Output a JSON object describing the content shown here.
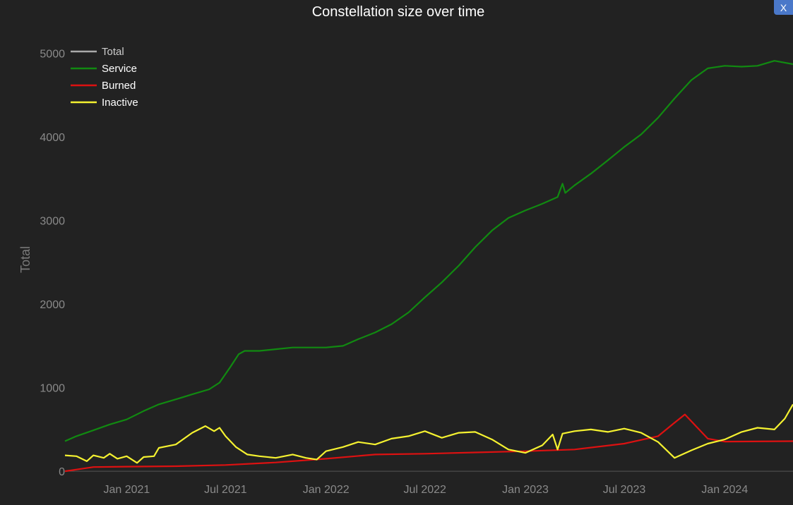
{
  "close_label": "X",
  "chart_data": {
    "type": "line",
    "title": "Constellation size over time",
    "ylabel": "Total",
    "xlabel": "",
    "x_range": [
      "2020-09-10",
      "2024-05-05"
    ],
    "ylim": [
      -100,
      5300
    ],
    "yticks": [
      0,
      1000,
      2000,
      3000,
      4000,
      5000
    ],
    "xticks": [
      {
        "date": "2021-01-01",
        "label": "Jan 2021"
      },
      {
        "date": "2021-07-01",
        "label": "Jul 2021"
      },
      {
        "date": "2022-01-01",
        "label": "Jan 2022"
      },
      {
        "date": "2022-07-01",
        "label": "Jul 2022"
      },
      {
        "date": "2023-01-01",
        "label": "Jan 2023"
      },
      {
        "date": "2023-07-01",
        "label": "Jul 2023"
      },
      {
        "date": "2024-01-01",
        "label": "Jan 2024"
      }
    ],
    "grid": false,
    "legend_position": "top-left",
    "series": [
      {
        "name": "Total",
        "color": "#aaaaaa",
        "x": [],
        "y": []
      },
      {
        "name": "Service",
        "color": "#118a11",
        "x": [
          "2020-09-10",
          "2020-10-01",
          "2020-11-01",
          "2020-12-01",
          "2021-01-01",
          "2021-02-01",
          "2021-03-01",
          "2021-04-01",
          "2021-05-01",
          "2021-06-01",
          "2021-06-20",
          "2021-07-10",
          "2021-07-25",
          "2021-08-05",
          "2021-09-01",
          "2021-10-01",
          "2021-11-01",
          "2021-12-01",
          "2022-01-01",
          "2022-01-15",
          "2022-02-01",
          "2022-03-01",
          "2022-04-01",
          "2022-05-01",
          "2022-06-01",
          "2022-07-01",
          "2022-08-01",
          "2022-09-01",
          "2022-10-01",
          "2022-11-01",
          "2022-12-01",
          "2023-01-01",
          "2023-02-01",
          "2023-03-01",
          "2023-03-10",
          "2023-03-15",
          "2023-04-01",
          "2023-05-01",
          "2023-06-01",
          "2023-07-01",
          "2023-08-01",
          "2023-09-01",
          "2023-10-01",
          "2023-11-01",
          "2023-12-01",
          "2024-01-01",
          "2024-02-01",
          "2024-03-01",
          "2024-04-01",
          "2024-05-05"
        ],
        "y": [
          360,
          420,
          490,
          560,
          620,
          720,
          800,
          860,
          920,
          980,
          1060,
          1250,
          1400,
          1440,
          1440,
          1460,
          1480,
          1480,
          1480,
          1490,
          1500,
          1580,
          1660,
          1760,
          1900,
          2080,
          2260,
          2460,
          2680,
          2880,
          3030,
          3120,
          3200,
          3280,
          3440,
          3330,
          3420,
          3560,
          3720,
          3880,
          4030,
          4230,
          4460,
          4680,
          4820,
          4850,
          4840,
          4850,
          4910,
          4870
        ]
      },
      {
        "name": "Burned",
        "color": "#dd1111",
        "x": [
          "2020-09-10",
          "2020-11-01",
          "2021-01-01",
          "2021-04-01",
          "2021-07-01",
          "2021-10-01",
          "2022-01-01",
          "2022-04-01",
          "2022-07-01",
          "2022-10-01",
          "2023-01-01",
          "2023-04-01",
          "2023-07-01",
          "2023-09-01",
          "2023-10-01",
          "2023-10-20",
          "2023-12-01",
          "2024-01-01",
          "2024-05-05"
        ],
        "y": [
          0,
          50,
          55,
          60,
          75,
          105,
          150,
          200,
          210,
          225,
          240,
          260,
          330,
          420,
          580,
          680,
          390,
          355,
          360
        ]
      },
      {
        "name": "Inactive",
        "color": "#f5f230",
        "x": [
          "2020-09-10",
          "2020-10-01",
          "2020-10-20",
          "2020-11-01",
          "2020-11-20",
          "2020-12-01",
          "2020-12-15",
          "2021-01-01",
          "2021-01-20",
          "2021-02-01",
          "2021-02-20",
          "2021-03-01",
          "2021-04-01",
          "2021-05-01",
          "2021-05-25",
          "2021-06-10",
          "2021-06-20",
          "2021-07-01",
          "2021-07-20",
          "2021-08-10",
          "2021-09-01",
          "2021-10-01",
          "2021-11-01",
          "2021-11-25",
          "2021-12-15",
          "2022-01-01",
          "2022-02-01",
          "2022-03-01",
          "2022-04-01",
          "2022-05-01",
          "2022-06-01",
          "2022-07-01",
          "2022-08-01",
          "2022-09-01",
          "2022-10-01",
          "2022-11-01",
          "2022-12-01",
          "2023-01-01",
          "2023-02-01",
          "2023-02-20",
          "2023-03-01",
          "2023-03-10",
          "2023-04-01",
          "2023-05-01",
          "2023-06-01",
          "2023-07-01",
          "2023-08-01",
          "2023-09-01",
          "2023-10-01",
          "2023-11-01",
          "2023-12-01",
          "2024-01-01",
          "2024-02-01",
          "2024-03-01",
          "2024-04-01",
          "2024-04-20",
          "2024-05-05"
        ],
        "y": [
          190,
          180,
          120,
          190,
          160,
          210,
          150,
          180,
          100,
          170,
          180,
          280,
          320,
          460,
          540,
          480,
          520,
          420,
          290,
          200,
          180,
          160,
          200,
          160,
          140,
          240,
          290,
          350,
          320,
          390,
          420,
          480,
          400,
          460,
          470,
          380,
          260,
          220,
          310,
          440,
          260,
          450,
          480,
          500,
          470,
          510,
          460,
          350,
          160,
          250,
          330,
          380,
          470,
          520,
          500,
          630,
          800
        ]
      }
    ]
  }
}
